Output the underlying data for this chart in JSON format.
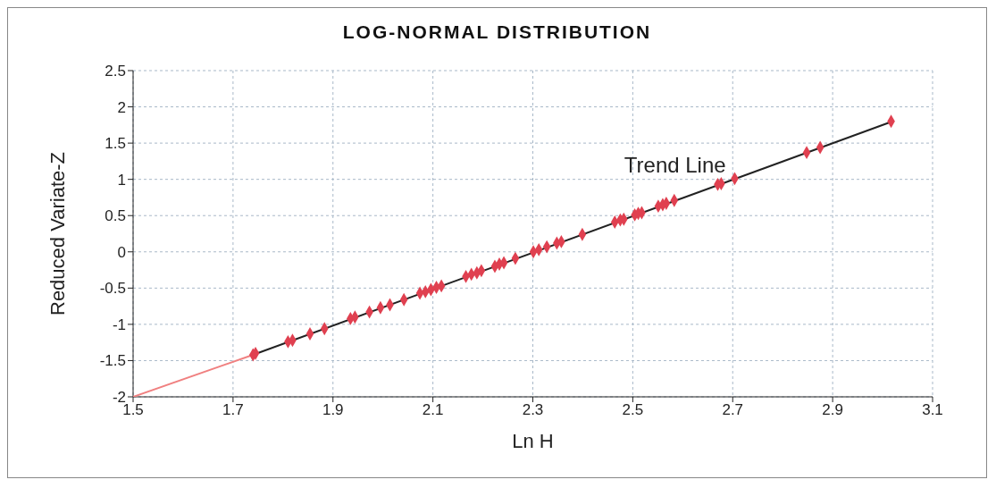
{
  "chart_data": {
    "type": "scatter",
    "title": "LOG-NORMAL DISTRIBUTION",
    "xlabel": "Ln  H",
    "ylabel": "Reduced Variate-Z",
    "xlim": [
      1.5,
      3.1
    ],
    "xticks": [
      1.5,
      1.7,
      1.9,
      2.1,
      2.3,
      2.5,
      2.7,
      2.9,
      3.1
    ],
    "ylim": [
      -2,
      2.5
    ],
    "yticks": [
      -2,
      -1.5,
      -1,
      -0.5,
      0,
      0.5,
      1,
      1.5,
      2,
      2.5
    ],
    "grid": true,
    "legend": false,
    "annotations": [
      {
        "text": "Trend Line",
        "x": 2.69,
        "y": 1.0
      }
    ],
    "series": [
      {
        "type": "line",
        "marker": "none",
        "color": "#f08080",
        "x": [
          1.5,
          1.74
        ],
        "values": [
          -2,
          -1.42
        ]
      },
      {
        "type": "line",
        "marker": "none",
        "color": "#222222",
        "x": [
          1.74,
          3.02
        ],
        "values": [
          -1.42,
          1.8
        ]
      },
      {
        "marker": "diamond",
        "color": "#e04050",
        "x": [
          1.74,
          1.745,
          1.81,
          1.819,
          1.854,
          1.883,
          1.935,
          1.944,
          1.973,
          1.995,
          2.014,
          2.042,
          2.074,
          2.085,
          2.096,
          2.107,
          2.117,
          2.166,
          2.177,
          2.188,
          2.197,
          2.224,
          2.233,
          2.242,
          2.265,
          2.301,
          2.312,
          2.328,
          2.348,
          2.357,
          2.399,
          2.464,
          2.475,
          2.482,
          2.504,
          2.511,
          2.518,
          2.551,
          2.56,
          2.567,
          2.583,
          2.67,
          2.677,
          2.704,
          2.848,
          2.875,
          3.017
        ],
        "values": [
          -1.42,
          -1.4,
          -1.24,
          -1.22,
          -1.13,
          -1.06,
          -0.92,
          -0.9,
          -0.83,
          -0.77,
          -0.73,
          -0.66,
          -0.57,
          -0.55,
          -0.52,
          -0.49,
          -0.47,
          -0.34,
          -0.31,
          -0.29,
          -0.26,
          -0.2,
          -0.17,
          -0.15,
          -0.09,
          0.0,
          0.03,
          0.07,
          0.12,
          0.14,
          0.24,
          0.41,
          0.44,
          0.45,
          0.51,
          0.53,
          0.54,
          0.63,
          0.65,
          0.67,
          0.71,
          0.93,
          0.94,
          1.01,
          1.37,
          1.44,
          1.8
        ]
      }
    ]
  }
}
